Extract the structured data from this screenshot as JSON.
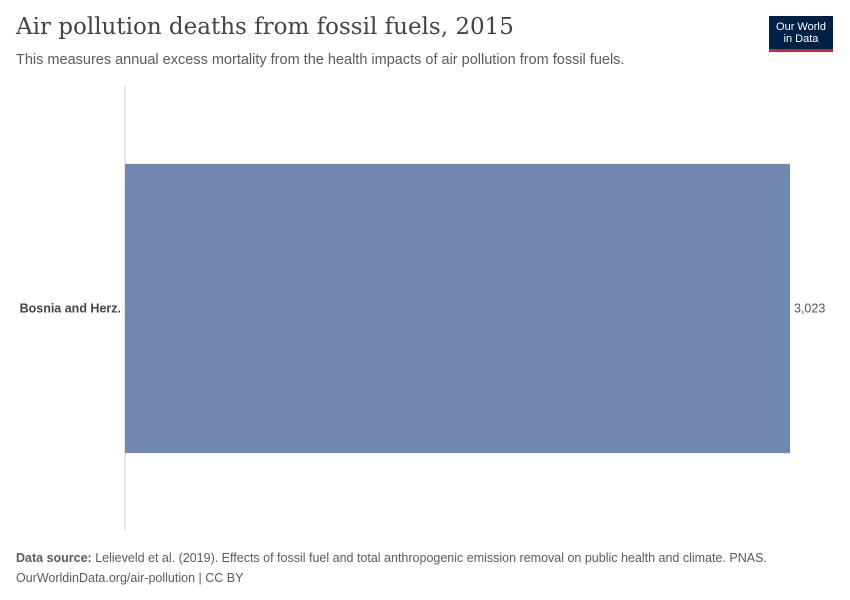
{
  "header": {
    "title": "Air pollution deaths from fossil fuels, 2015",
    "subtitle": "This measures annual excess mortality from the health impacts of air pollution from fossil fuels."
  },
  "logo": {
    "line1": "Our World",
    "line2": "in Data"
  },
  "chart_data": {
    "type": "bar",
    "orientation": "horizontal",
    "categories": [
      "Bosnia and Herz."
    ],
    "values": [
      3023
    ],
    "value_labels": [
      "3,023"
    ],
    "xlim": [
      0,
      3023
    ],
    "grid": false,
    "bar_color": "#7087b0"
  },
  "footer": {
    "source_label": "Data source:",
    "source_text": "Lelieveld et al. (2019). Effects of fossil fuel and total anthropogenic emission removal on public health and climate. PNAS.",
    "url_line": "OurWorldinData.org/air-pollution | CC BY"
  }
}
